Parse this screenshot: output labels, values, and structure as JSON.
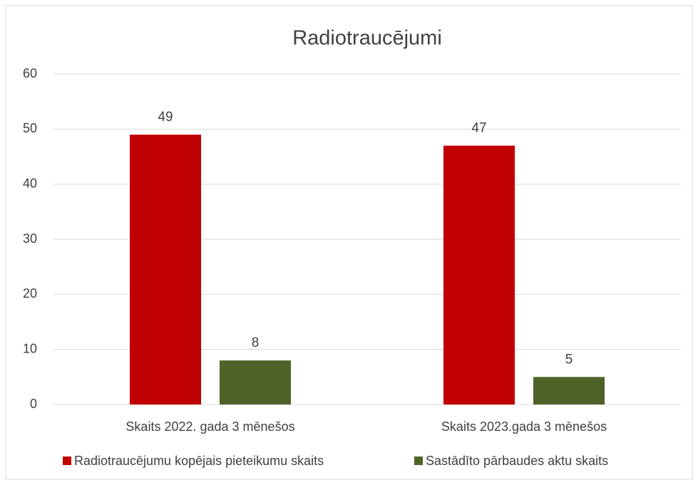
{
  "chart_data": {
    "type": "bar",
    "title": "Radiotraucējumi",
    "categories": [
      "Skaits 2022. gada 3 mēnešos",
      "Skaits 2023.gada 3 mēnešos"
    ],
    "series": [
      {
        "name": "Radiotraucējumu kopējais pieteikumu skaits",
        "color": "#c00000",
        "values": [
          49,
          47
        ]
      },
      {
        "name": "Sastādīto pārbaudes aktu skaits",
        "color": "#4f6228",
        "values": [
          8,
          5
        ]
      }
    ],
    "ylim": [
      0,
      60
    ],
    "yticks": [
      0,
      10,
      20,
      30,
      40,
      50,
      60
    ],
    "grid": true,
    "legend": "bottom"
  }
}
